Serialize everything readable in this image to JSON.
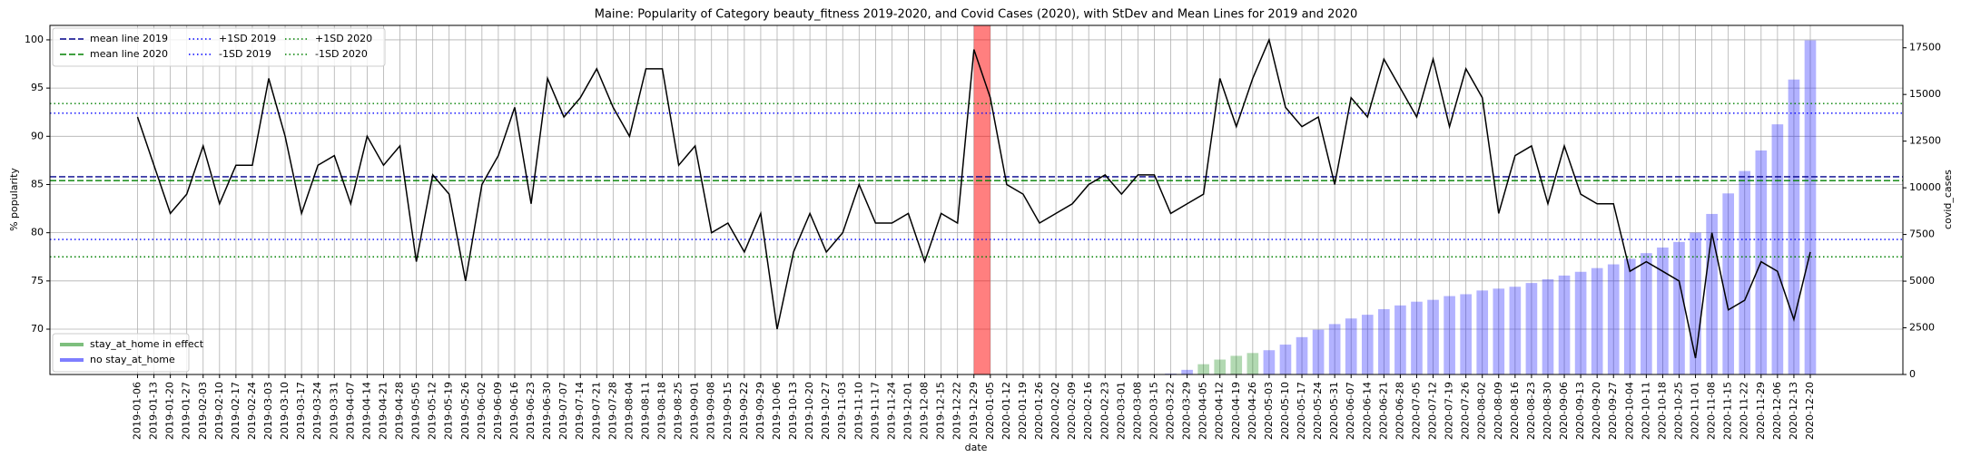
{
  "chart_data": {
    "type": "combo",
    "title": "Maine: Popularity of Category beauty_fitness 2019-2020, and Covid Cases (2020), with StDev and Mean Lines for 2019 and 2020",
    "x_label": "date",
    "y_label": "% popularity",
    "y2_label": "covid_cases",
    "categories": [
      "2019-01-06",
      "2019-01-13",
      "2019-01-20",
      "2019-01-27",
      "2019-02-03",
      "2019-02-10",
      "2019-02-17",
      "2019-02-24",
      "2019-03-03",
      "2019-03-10",
      "2019-03-17",
      "2019-03-24",
      "2019-03-31",
      "2019-04-07",
      "2019-04-14",
      "2019-04-21",
      "2019-04-28",
      "2019-05-05",
      "2019-05-12",
      "2019-05-19",
      "2019-05-26",
      "2019-06-02",
      "2019-06-09",
      "2019-06-16",
      "2019-06-23",
      "2019-06-30",
      "2019-07-07",
      "2019-07-14",
      "2019-07-21",
      "2019-07-28",
      "2019-08-04",
      "2019-08-11",
      "2019-08-18",
      "2019-08-25",
      "2019-09-01",
      "2019-09-08",
      "2019-09-15",
      "2019-09-22",
      "2019-09-29",
      "2019-10-06",
      "2019-10-13",
      "2019-10-20",
      "2019-10-27",
      "2019-11-03",
      "2019-11-10",
      "2019-11-17",
      "2019-11-24",
      "2019-12-01",
      "2019-12-08",
      "2019-12-15",
      "2019-12-22",
      "2019-12-29",
      "2020-01-05",
      "2020-01-12",
      "2020-01-19",
      "2020-01-26",
      "2020-02-02",
      "2020-02-09",
      "2020-02-16",
      "2020-02-23",
      "2020-03-01",
      "2020-03-08",
      "2020-03-15",
      "2020-03-22",
      "2020-03-29",
      "2020-04-05",
      "2020-04-12",
      "2020-04-19",
      "2020-04-26",
      "2020-05-03",
      "2020-05-10",
      "2020-05-17",
      "2020-05-24",
      "2020-05-31",
      "2020-06-07",
      "2020-06-14",
      "2020-06-21",
      "2020-06-28",
      "2020-07-05",
      "2020-07-12",
      "2020-07-19",
      "2020-07-26",
      "2020-08-02",
      "2020-08-09",
      "2020-08-16",
      "2020-08-23",
      "2020-08-30",
      "2020-09-06",
      "2020-09-13",
      "2020-09-20",
      "2020-09-27",
      "2020-10-04",
      "2020-10-11",
      "2020-10-18",
      "2020-10-25",
      "2020-11-01",
      "2020-11-08",
      "2020-11-15",
      "2020-11-22",
      "2020-11-29",
      "2020-12-06",
      "2020-12-13",
      "2020-12-20"
    ],
    "ylim": [
      65.3,
      101.5
    ],
    "yticks": [
      70,
      75,
      80,
      85,
      90,
      95,
      100
    ],
    "y2lim": [
      0,
      18700
    ],
    "y2ticks": [
      0,
      2500,
      5000,
      7500,
      10000,
      12500,
      15000,
      17500
    ],
    "grid": true,
    "series": [
      {
        "type": "line",
        "color": "#000000",
        "values": [
          92,
          87,
          82,
          84,
          89,
          83,
          87,
          87,
          96,
          90,
          82,
          87,
          88,
          83,
          90,
          87,
          89,
          77,
          86,
          84,
          75,
          85,
          88,
          93,
          83,
          96,
          92,
          94,
          97,
          93,
          90,
          97,
          97,
          87,
          89,
          80,
          81,
          78,
          82,
          70,
          78,
          82,
          78,
          80,
          85,
          81,
          81,
          82,
          77,
          82,
          81,
          99,
          94,
          85,
          84,
          81,
          82,
          83,
          85,
          86,
          84,
          86,
          86,
          82,
          83,
          84,
          96,
          91,
          96,
          100,
          93,
          91,
          92,
          85,
          94,
          92,
          98,
          95,
          92,
          98,
          91,
          97,
          94,
          82,
          88,
          89,
          83,
          89,
          84,
          83,
          83,
          76,
          77,
          76,
          75,
          67,
          80,
          72,
          73,
          77,
          76,
          71,
          78
        ]
      },
      {
        "type": "bar",
        "axis": "y2",
        "name": "stay_at_home in effect",
        "color": "#008000",
        "values": [
          null,
          null,
          null,
          null,
          null,
          null,
          null,
          null,
          null,
          null,
          null,
          null,
          null,
          null,
          null,
          null,
          null,
          null,
          null,
          null,
          null,
          null,
          null,
          null,
          null,
          null,
          null,
          null,
          null,
          null,
          null,
          null,
          null,
          null,
          null,
          null,
          null,
          null,
          null,
          null,
          null,
          null,
          null,
          null,
          null,
          null,
          null,
          null,
          null,
          null,
          null,
          null,
          null,
          null,
          null,
          null,
          null,
          null,
          null,
          null,
          null,
          null,
          null,
          null,
          null,
          550,
          800,
          1000,
          1150,
          null,
          null,
          null,
          null,
          null,
          null,
          null,
          null,
          null,
          null,
          null,
          null,
          null,
          null,
          null,
          null,
          null,
          null,
          null,
          null,
          null,
          null,
          null,
          null,
          null,
          null,
          null,
          null,
          null,
          null,
          null,
          null,
          null,
          null
        ]
      },
      {
        "type": "bar",
        "axis": "y2",
        "name": "no stay_at_home",
        "color": "#0000ff",
        "values": [
          null,
          null,
          null,
          null,
          null,
          null,
          null,
          null,
          null,
          null,
          null,
          null,
          null,
          null,
          null,
          null,
          null,
          null,
          null,
          null,
          null,
          null,
          null,
          null,
          null,
          null,
          null,
          null,
          null,
          null,
          null,
          null,
          null,
          null,
          null,
          null,
          null,
          null,
          null,
          null,
          null,
          null,
          null,
          null,
          null,
          null,
          null,
          null,
          null,
          null,
          null,
          null,
          null,
          null,
          null,
          null,
          null,
          null,
          null,
          null,
          null,
          null,
          null,
          50,
          250,
          null,
          null,
          null,
          null,
          1300,
          1600,
          2000,
          2400,
          2700,
          3000,
          3200,
          3500,
          3700,
          3900,
          4000,
          4200,
          4300,
          4500,
          4600,
          4700,
          4900,
          5100,
          5300,
          5500,
          5700,
          5900,
          6200,
          6500,
          6800,
          7100,
          7600,
          8600,
          9700,
          10900,
          12000,
          13400,
          15800,
          17900
        ]
      }
    ],
    "reference_lines": [
      {
        "name": "mean line 2019",
        "value": 85.8,
        "color": "#00008b",
        "style": "dashed"
      },
      {
        "name": "mean line 2020",
        "value": 85.4,
        "color": "#008000",
        "style": "dashed"
      },
      {
        "name": "+1SD 2019",
        "value": 92.4,
        "color": "#0000ff",
        "style": "dotted"
      },
      {
        "name": "-1SD 2019",
        "value": 79.3,
        "color": "#0000ff",
        "style": "dotted"
      },
      {
        "name": "+1SD 2020",
        "value": 93.4,
        "color": "#008000",
        "style": "dotted"
      },
      {
        "name": "-1SD 2020",
        "value": 77.5,
        "color": "#008000",
        "style": "dotted"
      }
    ],
    "span": {
      "from": "2019-12-29",
      "to": "2020-01-05",
      "color": "#ff0000"
    },
    "reference_legend_loc": "upper left",
    "series_legend_loc": "lower left"
  }
}
